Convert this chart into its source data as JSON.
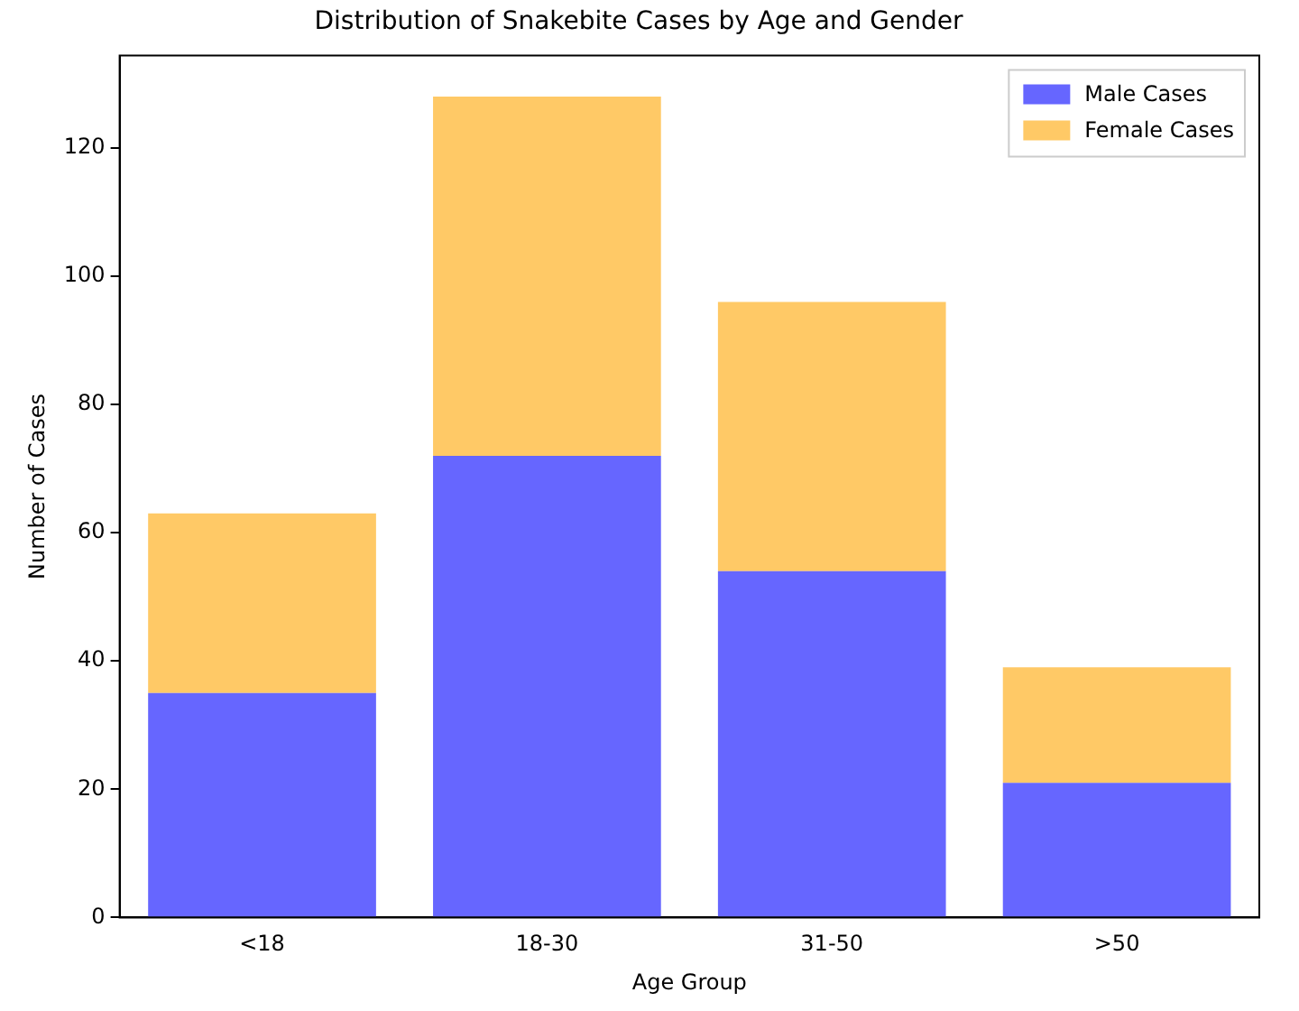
{
  "chart_data": {
    "type": "bar",
    "title": "Distribution of Snakebite Cases by Age and Gender",
    "xlabel": "Age Group",
    "ylabel": "Number of Cases",
    "categories": [
      "<18",
      "18-30",
      "31-50",
      ">50"
    ],
    "series": [
      {
        "name": "Male Cases",
        "color": "#6666ff",
        "values": [
          35,
          72,
          54,
          21
        ]
      },
      {
        "name": "Female Cases",
        "color": "#ffc966",
        "values": [
          28,
          56,
          42,
          18
        ]
      }
    ],
    "stacked": true,
    "ylim": [
      0,
      134.4
    ],
    "yticks": [
      0,
      20,
      40,
      60,
      80,
      100,
      120
    ],
    "grid": false,
    "legend": "top right"
  }
}
